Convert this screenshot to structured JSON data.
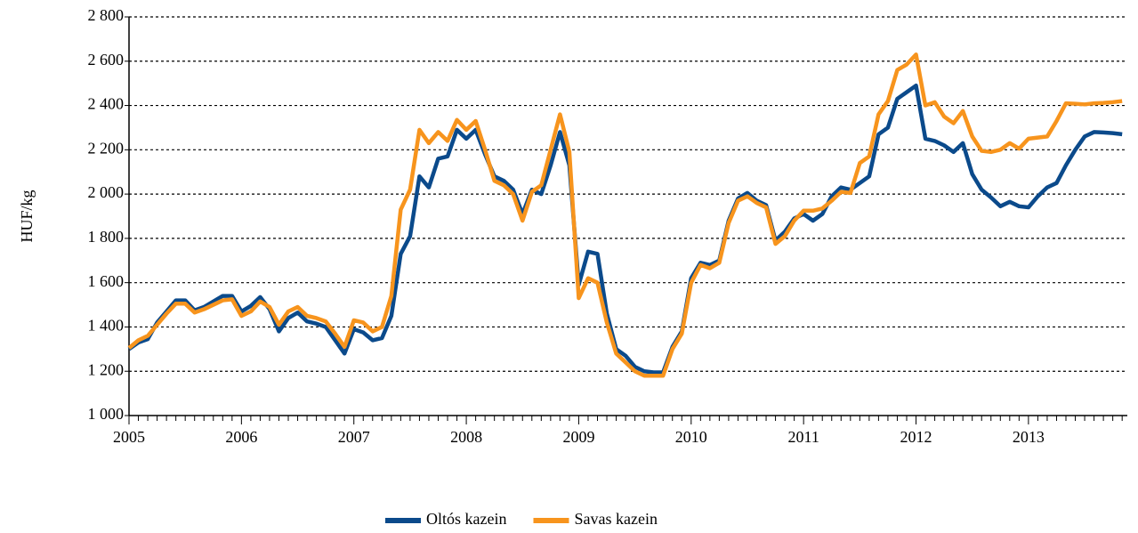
{
  "chart_data": {
    "type": "line",
    "y_label": "HUF/kg",
    "categories": [
      "2005",
      null,
      null,
      null,
      null,
      null,
      null,
      null,
      null,
      null,
      null,
      null,
      "2006",
      null,
      null,
      null,
      null,
      null,
      null,
      null,
      null,
      null,
      null,
      null,
      "2007",
      null,
      null,
      null,
      null,
      null,
      null,
      null,
      null,
      null,
      null,
      null,
      "2008",
      null,
      null,
      null,
      null,
      null,
      null,
      null,
      null,
      null,
      null,
      null,
      "2009",
      null,
      null,
      null,
      null,
      null,
      null,
      null,
      null,
      null,
      null,
      null,
      "2010",
      null,
      null,
      null,
      null,
      null,
      null,
      null,
      null,
      null,
      null,
      null,
      "2011",
      null,
      null,
      null,
      null,
      null,
      null,
      null,
      null,
      null,
      null,
      null,
      "2012",
      null,
      null,
      null,
      null,
      null,
      null,
      null,
      null,
      null,
      null,
      null,
      "2013",
      null,
      null,
      null,
      null,
      null,
      null,
      null,
      null,
      null,
      null
    ],
    "series": [
      {
        "name": "Oltós kazein",
        "color": "#0b4a8b",
        "values": [
          1300,
          1330,
          1345,
          1420,
          1470,
          1520,
          1520,
          1475,
          1490,
          1515,
          1540,
          1540,
          1470,
          1495,
          1535,
          1480,
          1380,
          1440,
          1465,
          1425,
          1415,
          1400,
          1340,
          1280,
          1390,
          1375,
          1340,
          1350,
          1450,
          1730,
          1810,
          2080,
          2030,
          2160,
          2170,
          2290,
          2250,
          2290,
          2180,
          2080,
          2060,
          2020,
          1910,
          2020,
          2000,
          2130,
          2280,
          2130,
          1590,
          1740,
          1730,
          1460,
          1300,
          1270,
          1220,
          1200,
          1195,
          1195,
          1310,
          1380,
          1620,
          1690,
          1680,
          1700,
          1880,
          1980,
          2005,
          1970,
          1950,
          1790,
          1830,
          1890,
          1910,
          1880,
          1910,
          1990,
          2030,
          2020,
          2050,
          2080,
          2270,
          2300,
          2430,
          2460,
          2490,
          2250,
          2240,
          2220,
          2190,
          2230,
          2090,
          2020,
          1985,
          1945,
          1965,
          1945,
          1940,
          1990,
          2030,
          2050,
          2130,
          2200,
          2260,
          2280,
          2278,
          2275,
          2270
        ]
      },
      {
        "name": "Savas kazein",
        "color": "#f7941d",
        "values": [
          1305,
          1340,
          1360,
          1410,
          1460,
          1505,
          1505,
          1465,
          1480,
          1500,
          1520,
          1525,
          1450,
          1470,
          1515,
          1490,
          1410,
          1470,
          1490,
          1450,
          1440,
          1425,
          1370,
          1310,
          1430,
          1420,
          1380,
          1400,
          1540,
          1930,
          2020,
          2290,
          2230,
          2280,
          2240,
          2335,
          2290,
          2330,
          2200,
          2060,
          2040,
          2000,
          1880,
          2010,
          2040,
          2200,
          2360,
          2190,
          1530,
          1620,
          1600,
          1420,
          1280,
          1240,
          1200,
          1180,
          1180,
          1180,
          1300,
          1370,
          1600,
          1680,
          1665,
          1690,
          1870,
          1970,
          1990,
          1960,
          1940,
          1775,
          1810,
          1880,
          1925,
          1925,
          1935,
          1970,
          2010,
          2005,
          2140,
          2170,
          2360,
          2420,
          2560,
          2585,
          2630,
          2400,
          2415,
          2350,
          2320,
          2375,
          2260,
          2195,
          2190,
          2200,
          2230,
          2205,
          2250,
          2255,
          2260,
          2330,
          2410,
          2408,
          2405,
          2410,
          2412,
          2415,
          2420
        ]
      }
    ],
    "ylim": [
      1000,
      2800
    ],
    "yticks": [
      {
        "value": 1000,
        "label": "1 000"
      },
      {
        "value": 1200,
        "label": "1 200"
      },
      {
        "value": 1400,
        "label": "1 400"
      },
      {
        "value": 1600,
        "label": "1 600"
      },
      {
        "value": 1800,
        "label": "1 800"
      },
      {
        "value": 2000,
        "label": "2 000"
      },
      {
        "value": 2200,
        "label": "2 200"
      },
      {
        "value": 2400,
        "label": "2 400"
      },
      {
        "value": 2600,
        "label": "2 600"
      },
      {
        "value": 2800,
        "label": "2 800"
      }
    ],
    "grid": true,
    "legend": "bottom"
  }
}
